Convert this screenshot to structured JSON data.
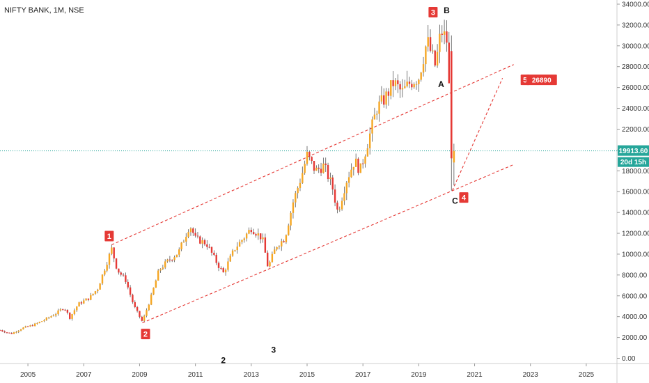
{
  "chart_data": {
    "type": "candlestick",
    "title": "NIFTY BANK, 1M, NSE",
    "y_axis": {
      "ticks": [
        "34000.00",
        "32000.00",
        "30000.00",
        "28000.00",
        "26000.00",
        "24000.00",
        "22000.00",
        "20000.00",
        "18000.00",
        "16000.00",
        "14000.00",
        "12000.00",
        "10000.00",
        "8000.00",
        "6000.00",
        "4000.00",
        "2000.00",
        "0.00"
      ],
      "range": [
        -500,
        34400
      ]
    },
    "x_axis": {
      "ticks": [
        "2005",
        "2007",
        "2009",
        "2011",
        "2013",
        "2015",
        "2017",
        "2019",
        "2021",
        "2023",
        "2025"
      ],
      "range": [
        2004.0,
        2026.1
      ]
    },
    "current_price": {
      "value": 19913.6,
      "label": "19913.60",
      "countdown": "20d 15h"
    },
    "colors": {
      "up": "#f5a623",
      "down": "#e53935",
      "annotation": "#e53935",
      "price_line": "#26a69a"
    },
    "series": [
      {
        "t": 2004.0,
        "v": 2700
      },
      {
        "t": 2004.4,
        "v": 2350
      },
      {
        "t": 2004.8,
        "v": 2900
      },
      {
        "t": 2005.2,
        "v": 3200
      },
      {
        "t": 2005.6,
        "v": 3700
      },
      {
        "t": 2006.0,
        "v": 4300
      },
      {
        "t": 2006.3,
        "v": 4900
      },
      {
        "t": 2006.5,
        "v": 3900
      },
      {
        "t": 2006.8,
        "v": 5200
      },
      {
        "t": 2007.2,
        "v": 5800
      },
      {
        "t": 2007.5,
        "v": 6700
      },
      {
        "t": 2007.8,
        "v": 9000
      },
      {
        "t": 2008.0,
        "v": 10500
      },
      {
        "t": 2008.2,
        "v": 8500
      },
      {
        "t": 2008.5,
        "v": 7500
      },
      {
        "t": 2008.8,
        "v": 5000
      },
      {
        "t": 2009.1,
        "v": 3500
      },
      {
        "t": 2009.4,
        "v": 5800
      },
      {
        "t": 2009.7,
        "v": 8500
      },
      {
        "t": 2010.0,
        "v": 9300
      },
      {
        "t": 2010.4,
        "v": 10200
      },
      {
        "t": 2010.8,
        "v": 12800
      },
      {
        "t": 2011.0,
        "v": 11500
      },
      {
        "t": 2011.4,
        "v": 11000
      },
      {
        "t": 2011.8,
        "v": 9000
      },
      {
        "t": 2012.0,
        "v": 8200
      },
      {
        "t": 2012.4,
        "v": 10500
      },
      {
        "t": 2012.8,
        "v": 11800
      },
      {
        "t": 2013.0,
        "v": 12500
      },
      {
        "t": 2013.4,
        "v": 11500
      },
      {
        "t": 2013.6,
        "v": 8700
      },
      {
        "t": 2013.9,
        "v": 10800
      },
      {
        "t": 2014.2,
        "v": 11500
      },
      {
        "t": 2014.5,
        "v": 15000
      },
      {
        "t": 2014.8,
        "v": 17500
      },
      {
        "t": 2015.0,
        "v": 19500
      },
      {
        "t": 2015.3,
        "v": 18000
      },
      {
        "t": 2015.6,
        "v": 18500
      },
      {
        "t": 2015.9,
        "v": 16500
      },
      {
        "t": 2016.1,
        "v": 14000
      },
      {
        "t": 2016.4,
        "v": 17000
      },
      {
        "t": 2016.7,
        "v": 19000
      },
      {
        "t": 2016.9,
        "v": 18000
      },
      {
        "t": 2017.2,
        "v": 21000
      },
      {
        "t": 2017.5,
        "v": 24000
      },
      {
        "t": 2017.8,
        "v": 25000
      },
      {
        "t": 2018.1,
        "v": 26500
      },
      {
        "t": 2018.4,
        "v": 25500
      },
      {
        "t": 2018.7,
        "v": 26500
      },
      {
        "t": 2019.0,
        "v": 27000
      },
      {
        "t": 2019.3,
        "v": 30500
      },
      {
        "t": 2019.6,
        "v": 28000
      },
      {
        "t": 2019.8,
        "v": 31500
      },
      {
        "t": 2020.0,
        "v": 30500
      },
      {
        "t": 2020.2,
        "v": 19900
      }
    ],
    "channel_lines": [
      {
        "from": {
          "t": 2008.0,
          "v": 10900
        },
        "to": {
          "t": 2022.4,
          "v": 28200
        }
      },
      {
        "from": {
          "t": 2009.1,
          "v": 3400
        },
        "to": {
          "t": 2022.4,
          "v": 18600
        }
      },
      {
        "from": {
          "t": 2020.2,
          "v": 16100
        },
        "to": {
          "t": 2022.0,
          "v": 26900
        }
      }
    ],
    "wave_labels": [
      {
        "text": "1",
        "t": 2007.9,
        "v": 11700,
        "boxed": true
      },
      {
        "text": "2",
        "t": 2009.2,
        "v": 2300,
        "boxed": true
      },
      {
        "text": "3",
        "t": 2019.5,
        "v": 33200,
        "boxed": true
      },
      {
        "text": "4",
        "t": 2020.6,
        "v": 15400,
        "boxed": true
      },
      {
        "text": "5",
        "t": 2022.8,
        "v": 26700,
        "boxed": true
      },
      {
        "text": "B",
        "t": 2020.0,
        "v": 33400,
        "boxed": false
      },
      {
        "text": "A",
        "t": 2019.8,
        "v": 26300,
        "boxed": false
      },
      {
        "text": "C",
        "t": 2020.3,
        "v": 15100,
        "boxed": false
      },
      {
        "text": "2",
        "t": 2012.0,
        "v": -200,
        "boxed": false
      },
      {
        "text": "3",
        "t": 2013.8,
        "v": 800,
        "boxed": false
      }
    ],
    "target_tag": {
      "text": "26890",
      "t": 2023.4,
      "v": 26700
    }
  }
}
